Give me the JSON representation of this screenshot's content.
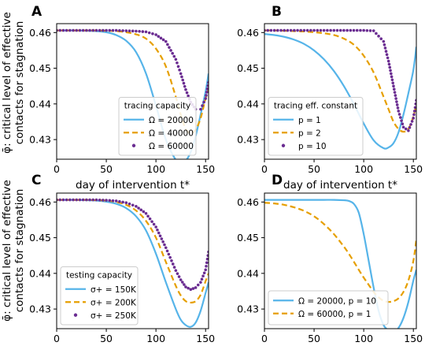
{
  "figure": {
    "ylabel_line1": "φ̄: critical level of effective",
    "ylabel_line2": "contacts for stagnation",
    "xlabel": "day of intervention t*"
  },
  "colors": {
    "blue": "#56b4e9",
    "orange": "#e69f00",
    "purple": "#6a2c91"
  },
  "chart_data": [
    {
      "panel": "A",
      "type": "line",
      "xlabel": "day of intervention t*",
      "ylabel": "φ̄: critical level of effective contacts for stagnation",
      "xlim": [
        0,
        153
      ],
      "ylim": [
        0.4245,
        0.4625
      ],
      "xticks": [
        "0",
        "50",
        "100",
        "150"
      ],
      "yticks": [
        "0.43",
        "0.44",
        "0.45",
        "0.46"
      ],
      "legend_title": "tracing capacity",
      "legend_position": "lower-right",
      "x": [
        0,
        10,
        20,
        30,
        40,
        50,
        60,
        70,
        80,
        90,
        100,
        110,
        120,
        125,
        130,
        135,
        140,
        145,
        150,
        153
      ],
      "series": [
        {
          "name": "Ω = 20000",
          "style": "solid",
          "color": "blue",
          "values": [
            0.4606,
            0.4606,
            0.4606,
            0.4605,
            0.4604,
            0.4601,
            0.4593,
            0.4577,
            0.4545,
            0.4485,
            0.4395,
            0.43,
            0.4243,
            0.4237,
            0.4241,
            0.4265,
            0.431,
            0.437,
            0.4435,
            0.4485
          ]
        },
        {
          "name": "Ω = 40000",
          "style": "dashed",
          "color": "orange",
          "values": [
            0.4606,
            0.4606,
            0.4606,
            0.4606,
            0.4606,
            0.4605,
            0.4604,
            0.4601,
            0.4595,
            0.4583,
            0.4555,
            0.4505,
            0.442,
            0.437,
            0.433,
            0.4318,
            0.4328,
            0.436,
            0.4415,
            0.444
          ]
        },
        {
          "name": "Ω = 60000",
          "style": "dots",
          "color": "purple",
          "values": [
            0.4606,
            0.4606,
            0.4606,
            0.4606,
            0.4606,
            0.4606,
            0.4606,
            0.4605,
            0.4604,
            0.4602,
            0.4594,
            0.4575,
            0.4525,
            0.4485,
            0.444,
            0.4405,
            0.4385,
            0.4385,
            0.4415,
            0.446
          ]
        }
      ]
    },
    {
      "panel": "B",
      "type": "line",
      "xlabel": "day of intervention t*",
      "ylabel": "",
      "xlim": [
        0,
        153
      ],
      "ylim": [
        0.4245,
        0.4625
      ],
      "xticks": [
        "0",
        "50",
        "100",
        "150"
      ],
      "yticks": [
        "0.43",
        "0.44",
        "0.45",
        "0.46"
      ],
      "legend_title": "tracing eff. constant",
      "legend_position": "lower-left",
      "x": [
        0,
        10,
        20,
        30,
        40,
        50,
        60,
        70,
        80,
        90,
        100,
        110,
        120,
        125,
        130,
        135,
        140,
        145,
        150,
        153
      ],
      "series": [
        {
          "name": "p = 1",
          "style": "solid",
          "color": "blue",
          "values": [
            0.4596,
            0.4593,
            0.4588,
            0.458,
            0.4568,
            0.455,
            0.4525,
            0.4492,
            0.445,
            0.44,
            0.4345,
            0.4298,
            0.4276,
            0.4278,
            0.429,
            0.432,
            0.437,
            0.443,
            0.4495,
            0.456
          ]
        },
        {
          "name": "p = 2",
          "style": "dashed",
          "color": "orange",
          "values": [
            0.4606,
            0.4606,
            0.4605,
            0.4604,
            0.4603,
            0.4601,
            0.4598,
            0.4593,
            0.4583,
            0.4566,
            0.4535,
            0.4488,
            0.442,
            0.4385,
            0.435,
            0.433,
            0.4322,
            0.433,
            0.4365,
            0.44
          ]
        },
        {
          "name": "p = 10",
          "style": "dots",
          "color": "purple",
          "values": [
            0.4606,
            0.4606,
            0.4606,
            0.4606,
            0.4606,
            0.4606,
            0.4606,
            0.4606,
            0.4606,
            0.4606,
            0.4606,
            0.4605,
            0.4575,
            0.452,
            0.445,
            0.438,
            0.4335,
            0.4325,
            0.436,
            0.441
          ]
        }
      ]
    },
    {
      "panel": "C",
      "type": "line",
      "xlabel": "day of intervention t*",
      "ylabel": "φ̄: critical level of effective contacts for stagnation",
      "xlim": [
        0,
        153
      ],
      "ylim": [
        0.4245,
        0.4625
      ],
      "xticks": [
        "0",
        "50",
        "100",
        "150"
      ],
      "yticks": [
        "0.43",
        "0.44",
        "0.45",
        "0.46"
      ],
      "legend_title": "testing capacity",
      "legend_position": "lower-left",
      "x": [
        0,
        10,
        20,
        30,
        40,
        50,
        60,
        70,
        80,
        90,
        100,
        110,
        120,
        125,
        130,
        135,
        140,
        145,
        150,
        153
      ],
      "series": [
        {
          "name": "σ+ = 150K",
          "style": "solid",
          "color": "blue",
          "values": [
            0.4606,
            0.4606,
            0.4606,
            0.4605,
            0.4604,
            0.4601,
            0.4595,
            0.4583,
            0.456,
            0.452,
            0.4455,
            0.4375,
            0.43,
            0.427,
            0.4255,
            0.425,
            0.4262,
            0.4295,
            0.4345,
            0.4375
          ]
        },
        {
          "name": "σ+ = 200K",
          "style": "dashed",
          "color": "orange",
          "values": [
            0.4606,
            0.4606,
            0.4606,
            0.4606,
            0.4605,
            0.4604,
            0.46,
            0.4592,
            0.4576,
            0.4547,
            0.45,
            0.4432,
            0.4365,
            0.4338,
            0.4322,
            0.4318,
            0.4322,
            0.434,
            0.4378,
            0.44
          ]
        },
        {
          "name": "σ+ = 250K",
          "style": "dots",
          "color": "purple",
          "values": [
            0.4606,
            0.4606,
            0.4606,
            0.4606,
            0.4606,
            0.4605,
            0.4603,
            0.4598,
            0.4588,
            0.4568,
            0.453,
            0.4472,
            0.4408,
            0.4382,
            0.4362,
            0.4355,
            0.436,
            0.4375,
            0.441,
            0.446
          ]
        }
      ]
    },
    {
      "panel": "D",
      "type": "line",
      "xlabel": "day of intervention t*",
      "ylabel": "",
      "xlim": [
        0,
        153
      ],
      "ylim": [
        0.4245,
        0.4625
      ],
      "xticks": [
        "0",
        "50",
        "100",
        "150"
      ],
      "yticks": [
        "0.43",
        "0.44",
        "0.45",
        "0.46"
      ],
      "legend_position": "lower-left",
      "x": [
        0,
        10,
        20,
        30,
        40,
        50,
        60,
        70,
        80,
        85,
        90,
        95,
        100,
        105,
        110,
        115,
        120,
        125,
        130,
        135,
        140,
        145,
        150,
        153
      ],
      "series": [
        {
          "name": "Ω = 20000, p = 10",
          "style": "solid",
          "color": "blue",
          "values": [
            0.4606,
            0.4606,
            0.4606,
            0.4606,
            0.4606,
            0.4606,
            0.4606,
            0.4606,
            0.4605,
            0.4603,
            0.4595,
            0.457,
            0.451,
            0.4435,
            0.436,
            0.4295,
            0.4255,
            0.424,
            0.4237,
            0.4247,
            0.4275,
            0.432,
            0.438,
            0.441
          ]
        },
        {
          "name": "Ω = 60000, p = 1",
          "style": "dashed",
          "color": "orange",
          "values": [
            0.4598,
            0.4596,
            0.4592,
            0.4585,
            0.4575,
            0.456,
            0.4538,
            0.451,
            0.4475,
            0.4455,
            0.4433,
            0.441,
            0.4388,
            0.4368,
            0.4348,
            0.4333,
            0.4323,
            0.432,
            0.4322,
            0.433,
            0.4348,
            0.438,
            0.4435,
            0.4495
          ]
        }
      ]
    }
  ]
}
